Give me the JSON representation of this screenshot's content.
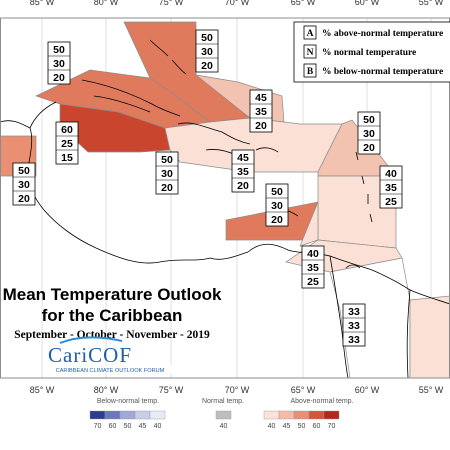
{
  "longitude_ticks": [
    "85° W",
    "80° W",
    "75° W",
    "70° W",
    "65° W",
    "60° W",
    "55° W"
  ],
  "legend": [
    {
      "letter": "A",
      "text": "% above-normal temperature"
    },
    {
      "letter": "N",
      "text": "% normal temperature"
    },
    {
      "letter": "B",
      "text": "% below-normal temperature"
    }
  ],
  "title": {
    "line1": "Mean Temperature Outlook",
    "line2": "for the Caribbean",
    "period": "September - October - November - 2019"
  },
  "logo": {
    "name": "CariCOF",
    "tagline": "CARIBBEAN CLIMATE OUTLOOK FORUM"
  },
  "forecast_boxes": [
    {
      "id": "bahamas",
      "values": [
        "50",
        "30",
        "20"
      ]
    },
    {
      "id": "cuba",
      "values": [
        "50",
        "30",
        "20"
      ]
    },
    {
      "id": "turks-caicos",
      "values": [
        "45",
        "35",
        "20"
      ]
    },
    {
      "id": "leeward-north",
      "values": [
        "50",
        "30",
        "20"
      ]
    },
    {
      "id": "cayman",
      "values": [
        "60",
        "25",
        "15"
      ]
    },
    {
      "id": "hispaniola",
      "values": [
        "45",
        "35",
        "20"
      ]
    },
    {
      "id": "belize",
      "values": [
        "50",
        "30",
        "20"
      ]
    },
    {
      "id": "jamaica",
      "values": [
        "50",
        "30",
        "20"
      ]
    },
    {
      "id": "windward",
      "values": [
        "40",
        "35",
        "25"
      ]
    },
    {
      "id": "abc-islands",
      "values": [
        "50",
        "30",
        "20"
      ]
    },
    {
      "id": "trinidad",
      "values": [
        "40",
        "35",
        "25"
      ]
    },
    {
      "id": "guianas",
      "values": [
        "33",
        "33",
        "33"
      ]
    }
  ],
  "colorbar": {
    "below_title": "Below-normal temp.",
    "normal_title": "Normal temp.",
    "above_title": "Above-normal temp.",
    "below_labels": [
      "70",
      "60",
      "50",
      "45",
      "40"
    ],
    "normal_label": "40",
    "above_labels": [
      "40",
      "45",
      "50",
      "60",
      "70"
    ],
    "below_colors": [
      "#2b3d8f",
      "#6a78c0",
      "#9fa8d8",
      "#c9cdea",
      "#e8eaf6"
    ],
    "normal_color": "#bdbdbd",
    "above_colors": [
      "#fbe3da",
      "#f5bba6",
      "#e98f72",
      "#d4553a",
      "#b3271c"
    ]
  },
  "colors": {
    "strong_red": "#c9452e",
    "mid_red": "#e07a5d",
    "light_red": "#f3c3b1",
    "pale_red": "#fae0d5",
    "frame": "#8c8c8c"
  }
}
